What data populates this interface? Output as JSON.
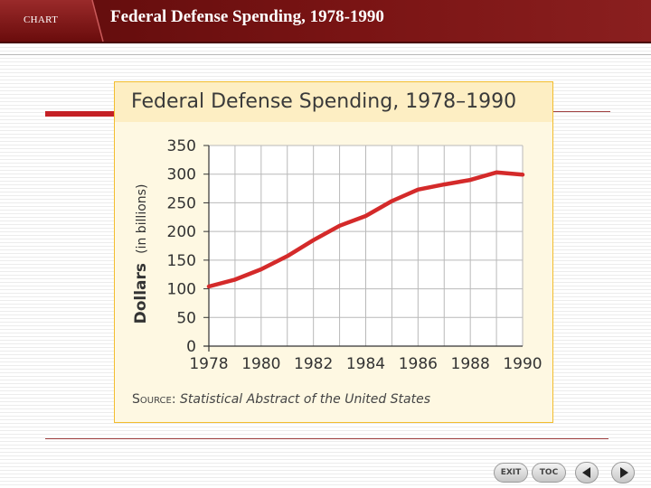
{
  "header": {
    "tag": "CHART",
    "title": "Federal Defense Spending, 1978-1990"
  },
  "nav": {
    "exit_label": "EXIT",
    "toc_label": "TOC",
    "prev_icon": "triangle-left",
    "next_icon": "triangle-right"
  },
  "colors": {
    "header_bar": "#6f0f0f",
    "accent_red": "#c42025",
    "panel_border": "#f2bd2e",
    "panel_fill": "#fef8e2",
    "line": "#d42a2a"
  },
  "chart_data": {
    "type": "line",
    "title": "Federal Defense Spending, 1978–1990",
    "ylabel_main": "Dollars",
    "ylabel_unit": "(in billions)",
    "xlabel": "",
    "x": [
      1978,
      1979,
      1980,
      1981,
      1982,
      1983,
      1984,
      1985,
      1986,
      1987,
      1988,
      1989,
      1990
    ],
    "x_tick_labels": [
      "1978",
      "1980",
      "1982",
      "1984",
      "1986",
      "1988",
      "1990"
    ],
    "y_tick_labels": [
      "0",
      "50",
      "100",
      "150",
      "200",
      "250",
      "300",
      "350"
    ],
    "series": [
      {
        "values": [
          104,
          116,
          134,
          157,
          185,
          210,
          227,
          253,
          273,
          282,
          290,
          303,
          299
        ]
      }
    ],
    "xlim": [
      1978,
      1990
    ],
    "ylim": [
      0,
      350
    ],
    "grid": true,
    "source_label": "Source:",
    "source_text": "Statistical Abstract of the United States"
  }
}
